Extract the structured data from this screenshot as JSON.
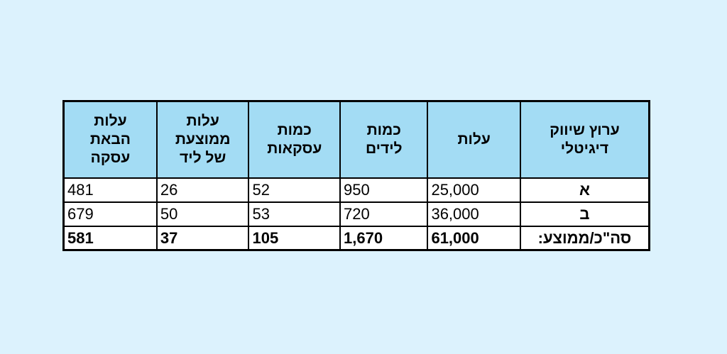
{
  "table": {
    "header": [
      [
        "ערוץ שיווק",
        "דיגיטלי"
      ],
      [
        "עלות"
      ],
      [
        "כמות",
        "לידים"
      ],
      [
        "כמות",
        "עסקאות"
      ],
      [
        "עלות",
        "ממוצעת",
        "של ליד"
      ],
      [
        "עלות",
        "הבאת",
        "עסקה"
      ]
    ],
    "rows": [
      [
        "א",
        "25,000",
        "950",
        "52",
        "26",
        "481"
      ],
      [
        "ב",
        "36,000",
        "720",
        "53",
        "50",
        "679"
      ],
      [
        "סה\"כ/ממוצע:",
        "61,000",
        "1,670",
        "105",
        "37",
        "581"
      ]
    ]
  }
}
